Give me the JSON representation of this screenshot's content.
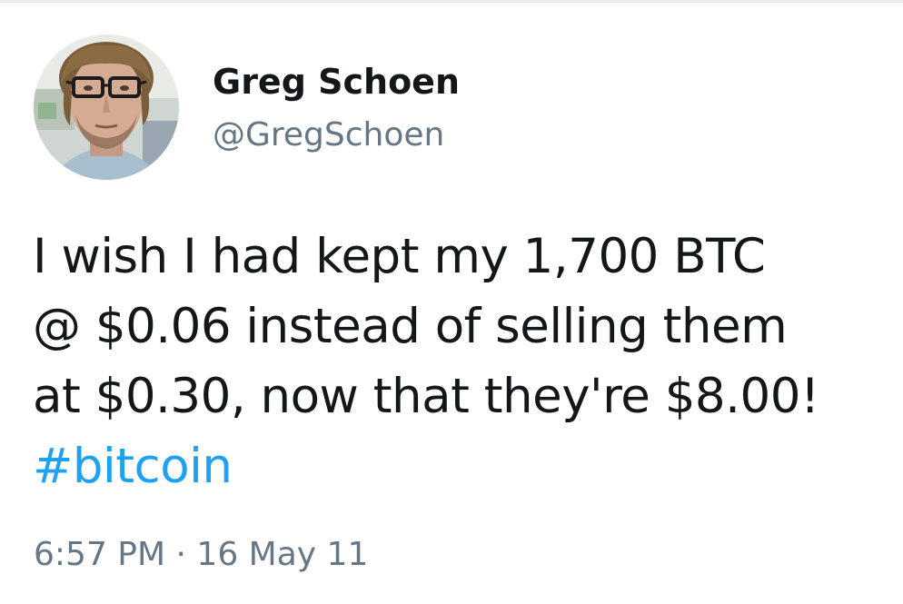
{
  "tweet": {
    "author": {
      "display_name": "Greg Schoen",
      "handle": "@GregSchoen",
      "avatar": "profile-photo"
    },
    "text_lines": [
      "I wish I had kept my 1,700 BTC",
      "@ $0.06 instead of selling them",
      "at $0.30, now that they're $8.00!"
    ],
    "hashtag": "#bitcoin",
    "time": "6:57 PM",
    "separator": "·",
    "date": "16 May 11"
  },
  "colors": {
    "text": "#14171a",
    "secondary": "#657786",
    "link": "#1da1f2",
    "divider": "#e6ecf0"
  }
}
